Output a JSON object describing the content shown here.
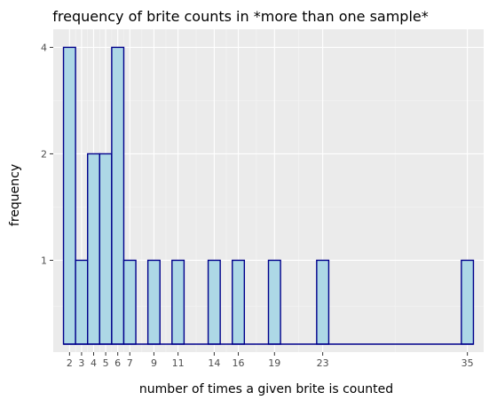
{
  "chart_data": {
    "type": "bar",
    "title": "frequency of brite counts in *more than one sample*",
    "xlabel": "number of times a given brite is counted",
    "ylabel": "frequency",
    "x": [
      2,
      3,
      4,
      5,
      6,
      7,
      9,
      11,
      14,
      16,
      19,
      23,
      35
    ],
    "values": [
      4,
      1,
      2,
      2,
      4,
      1,
      1,
      1,
      1,
      1,
      1,
      1,
      1
    ],
    "x_ticks": [
      2,
      3,
      4,
      5,
      6,
      7,
      9,
      11,
      14,
      16,
      19,
      23,
      35
    ],
    "x_tick_labels": [
      "2",
      "3",
      "4",
      "5",
      "6",
      "7",
      "9",
      "11",
      "14",
      "16",
      "19",
      "23",
      "35"
    ],
    "y_ticks": [
      1,
      2,
      4
    ],
    "y_tick_labels": [
      "1",
      "2",
      "4"
    ],
    "y_scale": "log",
    "grid": true,
    "colors": {
      "bar_fill": "#add8e6",
      "bar_outline": "#00008b",
      "panel": "#ebebeb"
    }
  }
}
